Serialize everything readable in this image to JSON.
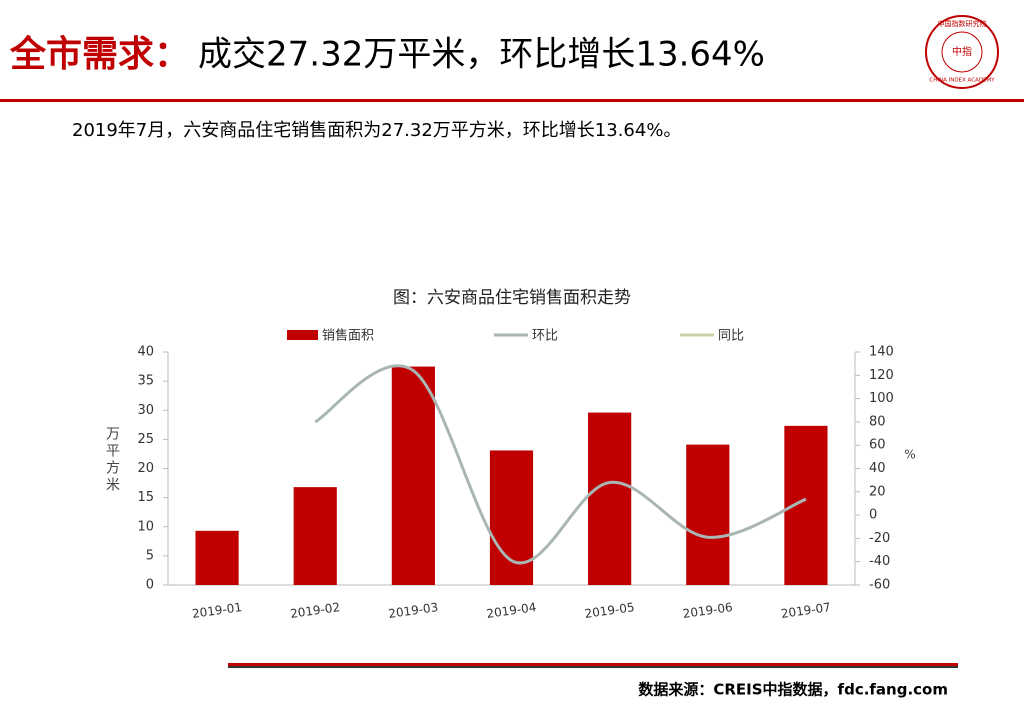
{
  "header": {
    "title_label": "全市需求：",
    "title": "成交27.32万平米，环比增长13.64%",
    "logo_top": "中国指数研究院",
    "logo_center": "中指",
    "logo_text": "CHINA INDEX ACADEMY"
  },
  "summary": "2019年7月，六安商品住宅销售面积为27.32万平方米，环比增长13.64%。",
  "chart_data": {
    "type": "bar",
    "title": "图：六安商品住宅销售面积走势",
    "categories": [
      "2019-01",
      "2019-02",
      "2019-03",
      "2019-04",
      "2019-05",
      "2019-06",
      "2019-07"
    ],
    "series": [
      {
        "name": "销售面积",
        "type": "bar",
        "color": "#c00000",
        "values": [
          9.3,
          16.8,
          37.5,
          23.1,
          29.6,
          24.1,
          27.32
        ]
      },
      {
        "name": "环比",
        "type": "line",
        "axis": "y2",
        "color": "#a9b6b4",
        "values": [
          null,
          80,
          124,
          -39,
          28,
          -19,
          13.64
        ]
      },
      {
        "name": "同比",
        "type": "line",
        "axis": "y2",
        "color": "#c9d3a6",
        "values": [
          null,
          null,
          null,
          null,
          null,
          null,
          null
        ]
      }
    ],
    "ylabel": "万平方米",
    "y2label": "%",
    "ylim": [
      0,
      40
    ],
    "yticks": [
      0,
      5,
      10,
      15,
      20,
      25,
      30,
      35,
      40
    ],
    "y2lim": [
      -60,
      140
    ],
    "y2ticks": [
      -60,
      -40,
      -20,
      0,
      20,
      40,
      60,
      80,
      100,
      120,
      140
    ]
  },
  "source": "数据来源：CREIS中指数据，fdc.fang.com"
}
